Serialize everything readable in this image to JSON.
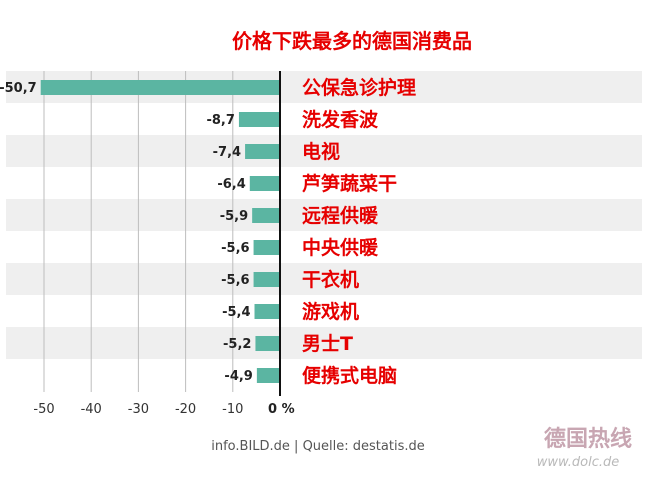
{
  "chart_data": {
    "type": "bar",
    "orientation": "horizontal",
    "title": "价格下跌最多的德国消费品",
    "categories": [
      "公保急诊护理",
      "洗发香波",
      "电视",
      "芦笋蔬菜干",
      "远程供暖",
      "中央供暖",
      "干衣机",
      "游戏机",
      "男士T",
      "便携式电脑"
    ],
    "values": [
      -50.7,
      -8.7,
      -7.4,
      -6.4,
      -5.9,
      -5.6,
      -5.6,
      -5.4,
      -5.2,
      -4.9
    ],
    "value_labels": [
      "-50,7",
      "-8,7",
      "-7,4",
      "-6,4",
      "-5,9",
      "-5,6",
      "-5,6",
      "-5,4",
      "-5,2",
      "-4,9"
    ],
    "xlim": [
      -52,
      0
    ],
    "x_ticks": [
      -50,
      -40,
      -30,
      -20,
      -10,
      0
    ],
    "x_tick_labels": [
      "-50",
      "-40",
      "-30",
      "-20",
      "-10",
      "0 %"
    ],
    "grid": true,
    "bar_color": "#5bb5a2",
    "stripe_color": "#efefef",
    "category_color": "#e60000"
  },
  "source_text": "info.BILD.de | Quelle: destatis.de",
  "watermark": {
    "brand": "德国热线",
    "url": "www.dolc.de"
  }
}
